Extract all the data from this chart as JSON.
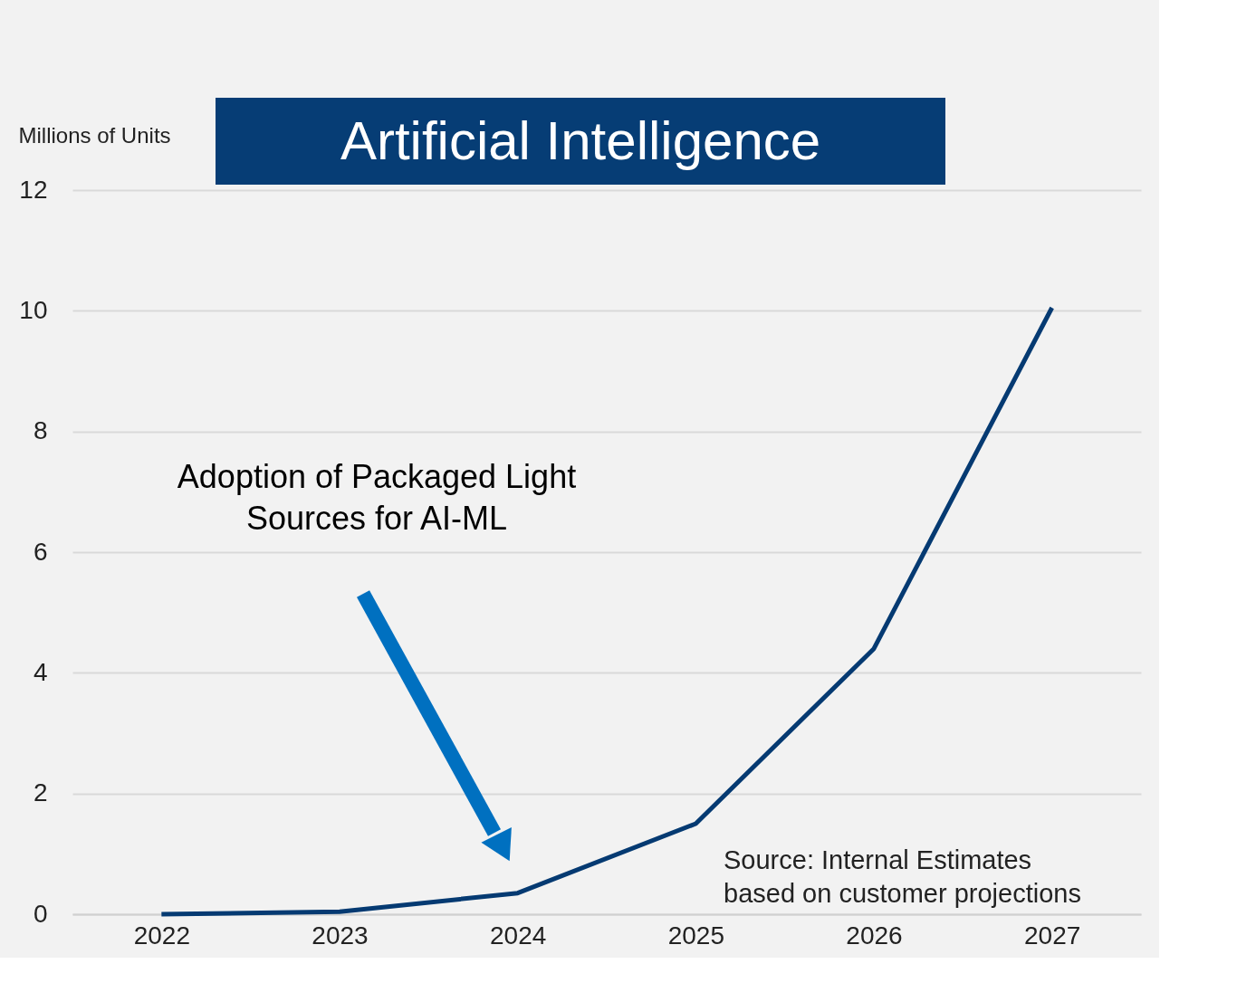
{
  "chart_data": {
    "type": "line",
    "title": "Artificial Intelligence",
    "ylabel": "Millions of Units",
    "categories": [
      "2022",
      "2023",
      "2024",
      "2025",
      "2026",
      "2027"
    ],
    "series": [
      {
        "color": "#053a72",
        "values": [
          0,
          0.04,
          0.35,
          1.5,
          4.4,
          10.05
        ]
      }
    ],
    "ylim": [
      0,
      12
    ],
    "yticks": [
      0,
      2,
      4,
      6,
      8,
      10,
      12
    ],
    "grid": "y",
    "marker": "none",
    "line_style": "solid",
    "annotations": [
      "Adoption of Packaged Light Sources for AI-ML",
      "Source: Internal Estimates based on customer projections"
    ]
  }
}
